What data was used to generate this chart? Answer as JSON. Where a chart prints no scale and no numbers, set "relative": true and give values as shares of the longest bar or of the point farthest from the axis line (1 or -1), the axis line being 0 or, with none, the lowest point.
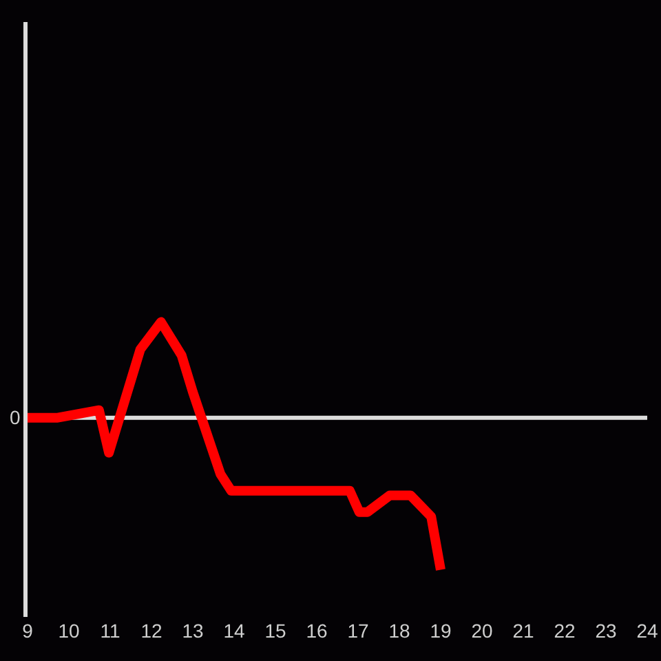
{
  "chart_data": {
    "type": "line",
    "relative": true,
    "x": [
      9,
      9.73,
      10.73,
      10.97,
      11.73,
      12.23,
      12.73,
      13.0,
      13.67,
      13.93,
      16.8,
      17.03,
      17.23,
      17.77,
      18.27,
      18.77,
      19
    ],
    "series": [
      {
        "color": "#ff0000",
        "values": [
          0,
          0,
          0.05,
          -0.23,
          0.45,
          0.63,
          0.41,
          0.17,
          -0.37,
          -0.48,
          -0.48,
          -0.62,
          -0.62,
          -0.51,
          -0.51,
          -0.65,
          -1
        ]
      }
    ],
    "xlim": [
      9,
      24
    ],
    "xticks": [
      9,
      10,
      11,
      12,
      13,
      14,
      15,
      16,
      17,
      18,
      19,
      20,
      21,
      22,
      23,
      24
    ],
    "ref_lines": [
      {
        "axis": "y",
        "value": 0,
        "label": "0",
        "color": "#dcdcdc",
        "line_style": "solid"
      }
    ],
    "grid": false,
    "line_style": "solid"
  }
}
